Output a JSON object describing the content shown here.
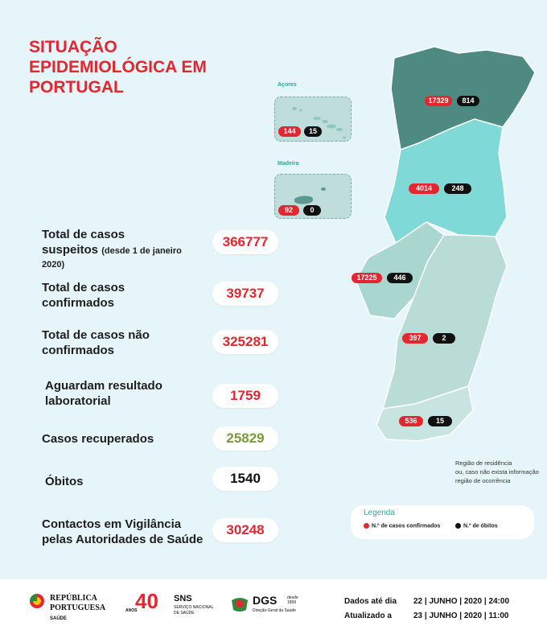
{
  "title": [
    "SITUAÇÃO",
    "EPIDEMIOLÓGICA EM",
    "PORTUGAL"
  ],
  "stats": [
    {
      "label_lines": [
        "Total de casos",
        "suspeitos"
      ],
      "small": "(desde 1 de janeiro",
      "small2": "2020)",
      "value": "366777"
    },
    {
      "label_lines": [
        "Total de casos",
        "confirmados"
      ],
      "value": "39737"
    },
    {
      "label_lines": [
        "Total de casos não",
        "confirmados"
      ],
      "value": "325281"
    },
    {
      "label_lines": [
        "Aguardam resultado",
        "laboratorial"
      ],
      "value": "1759"
    },
    {
      "label_lines": [
        "Casos recuperados"
      ],
      "value": "25829"
    },
    {
      "label_lines": [
        "Óbitos"
      ],
      "value": "1540"
    },
    {
      "label_lines": [
        "Contactos em Vigilância",
        "pelas Autoridades de Saúde"
      ],
      "value": "30248"
    }
  ],
  "islands": {
    "acores": {
      "label": "Açores",
      "cases": "144",
      "deaths": "15"
    },
    "madeira": {
      "label": "Madeira",
      "cases": "92",
      "deaths": "0"
    }
  },
  "regions": {
    "norte": {
      "cases": "17329",
      "deaths": "814",
      "color": "#4f8a82"
    },
    "centro": {
      "cases": "4014",
      "deaths": "248",
      "color": "#7fdad7"
    },
    "lvt": {
      "cases": "17225",
      "deaths": "446",
      "color": "#a9d6cf"
    },
    "alentejo": {
      "cases": "397",
      "deaths": "2",
      "color": "#b9dcd6"
    },
    "algarve": {
      "cases": "536",
      "deaths": "15",
      "color": "#c8e4e0"
    }
  },
  "note": [
    "Região de residência",
    "ou, caso não exista informação",
    "região de ocorrência"
  ],
  "legend": {
    "title": "Legenda",
    "cases": "N.º de casos confirmados",
    "deaths": "N.º de óbitos"
  },
  "footer": {
    "republica": "REPÚBLICA",
    "portuguesa": "PORTUGUESA",
    "saude": "SAÚDE",
    "forty": "40",
    "anos": "ANOS",
    "sns": "SNS",
    "sns_sub1": "SERVIÇO NACIONAL",
    "sns_sub2": "DE SAÚDE",
    "dgs": "DGS",
    "dgs_since": "desde 1899",
    "dgs_sub": "Direção-Geral da Saúde",
    "dados_label": "Dados até dia",
    "dados_value": "22 | JUNHO | 2020 | 24:00",
    "atualizado_label": "Atualizado a",
    "atualizado_value": "23 | JUNHO | 2020 | 11:00"
  },
  "colors": {
    "accent_red": "#e3262f",
    "teal": "#2fa79b",
    "green": "#7a9a3a"
  }
}
